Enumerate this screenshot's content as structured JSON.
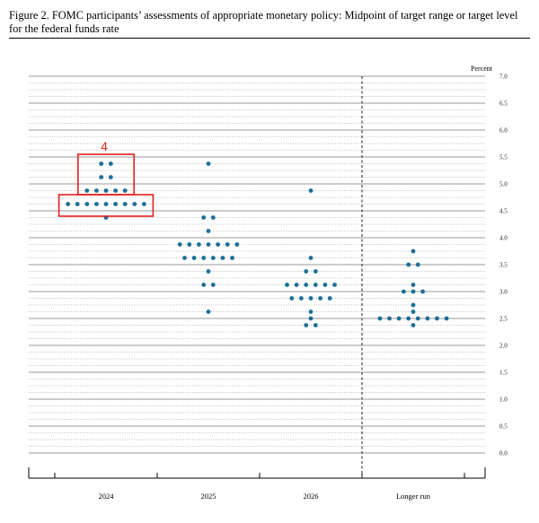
{
  "caption": {
    "text": "Figure 2.  FOMC participants’ assessments of appropriate monetary policy:  Midpoint of target range or target level for the federal funds rate"
  },
  "chart_data": {
    "type": "scatter",
    "subtype": "dot-plot",
    "unit_label": "Percent",
    "categories": [
      "2024",
      "2025",
      "2026",
      "Longer run"
    ],
    "ylim": [
      0.0,
      7.0
    ],
    "ytick_step": 0.5,
    "yticks": [
      "0.0",
      "0.5",
      "1.0",
      "1.5",
      "2.0",
      "2.5",
      "3.0",
      "3.5",
      "4.0",
      "4.5",
      "5.0",
      "5.5",
      "6.0",
      "6.5",
      "7.0"
    ],
    "minor_step": 0.125,
    "grid": true,
    "separator_before": "Longer run",
    "dot_color": "#1d6f96",
    "dots": [
      {
        "category": "2024",
        "y": 5.375,
        "count": 2
      },
      {
        "category": "2024",
        "y": 5.125,
        "count": 2
      },
      {
        "category": "2024",
        "y": 4.875,
        "count": 5
      },
      {
        "category": "2024",
        "y": 4.625,
        "count": 9
      },
      {
        "category": "2024",
        "y": 4.375,
        "count": 1
      },
      {
        "category": "2025",
        "y": 5.375,
        "count": 1
      },
      {
        "category": "2025",
        "y": 4.375,
        "count": 2
      },
      {
        "category": "2025",
        "y": 4.125,
        "count": 1
      },
      {
        "category": "2025",
        "y": 3.875,
        "count": 7
      },
      {
        "category": "2025",
        "y": 3.625,
        "count": 6
      },
      {
        "category": "2025",
        "y": 3.375,
        "count": 1
      },
      {
        "category": "2025",
        "y": 3.125,
        "count": 2
      },
      {
        "category": "2025",
        "y": 2.625,
        "count": 1
      },
      {
        "category": "2026",
        "y": 4.875,
        "count": 1
      },
      {
        "category": "2026",
        "y": 3.625,
        "count": 1
      },
      {
        "category": "2026",
        "y": 3.375,
        "count": 2
      },
      {
        "category": "2026",
        "y": 3.125,
        "count": 6
      },
      {
        "category": "2026",
        "y": 2.875,
        "count": 5
      },
      {
        "category": "2026",
        "y": 2.625,
        "count": 1
      },
      {
        "category": "2026",
        "y": 2.5,
        "count": 1
      },
      {
        "category": "2026",
        "y": 2.375,
        "count": 2
      },
      {
        "category": "Longer run",
        "y": 3.75,
        "count": 1
      },
      {
        "category": "Longer run",
        "y": 3.5,
        "count": 2
      },
      {
        "category": "Longer run",
        "y": 3.125,
        "count": 1
      },
      {
        "category": "Longer run",
        "y": 3.0,
        "count": 3
      },
      {
        "category": "Longer run",
        "y": 2.75,
        "count": 1
      },
      {
        "category": "Longer run",
        "y": 2.625,
        "count": 1
      },
      {
        "category": "Longer run",
        "y": 2.5,
        "count": 8
      },
      {
        "category": "Longer run",
        "y": 2.375,
        "count": 1
      }
    ],
    "annotations": [
      {
        "type": "box",
        "category": "2024",
        "y_range": [
          4.8,
          5.55
        ],
        "color": "#e0201f"
      },
      {
        "type": "box",
        "category": "2024",
        "y_range": [
          4.4,
          4.8
        ],
        "color": "#e0201f"
      },
      {
        "type": "text",
        "text": "4",
        "category": "2024",
        "y": 5.7,
        "color": "#e0201f"
      }
    ]
  }
}
